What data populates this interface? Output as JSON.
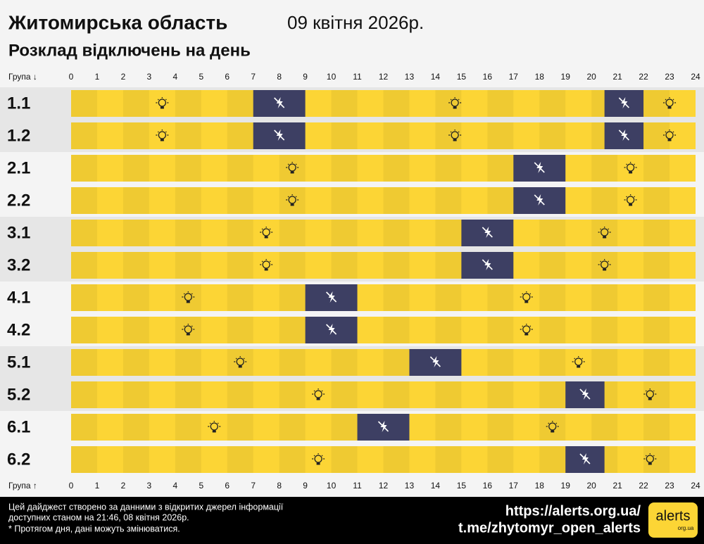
{
  "chart_data": {
    "type": "gantt",
    "title": "Житомирська область",
    "date": "09 квітня 2026р.",
    "subtitle": "Розклад відключень на день",
    "axis_label_top": "Група ↓",
    "axis_label_bottom": "Група ↑",
    "categories": [
      "1.1",
      "1.2",
      "2.1",
      "2.2",
      "3.1",
      "3.2",
      "4.1",
      "4.2",
      "5.1",
      "5.2",
      "6.1",
      "6.2"
    ],
    "outages": [
      [
        [
          7,
          9
        ],
        [
          20.5,
          22
        ]
      ],
      [
        [
          7,
          9
        ],
        [
          20.5,
          22
        ]
      ],
      [
        [
          17,
          19
        ]
      ],
      [
        [
          17,
          19
        ]
      ],
      [
        [
          15,
          17
        ]
      ],
      [
        [
          15,
          17
        ]
      ],
      [
        [
          9,
          11
        ]
      ],
      [
        [
          9,
          11
        ]
      ],
      [
        [
          13,
          15
        ]
      ],
      [
        [
          19,
          20.5
        ]
      ],
      [
        [
          11,
          13
        ]
      ],
      [
        [
          19,
          20.5
        ]
      ]
    ],
    "xlim": [
      0,
      24
    ],
    "xticks": [
      0,
      1,
      2,
      3,
      4,
      5,
      6,
      7,
      8,
      9,
      10,
      11,
      12,
      13,
      14,
      15,
      16,
      17,
      18,
      19,
      20,
      21,
      22,
      23,
      24
    ],
    "on_color": "#fcd535",
    "off_color": "#3d3f63"
  },
  "footer": {
    "note_lines": [
      "Цей дайджест створено за данними з відкритих джерел інформації",
      "доступних станом на 21:46, 08 квітня 2026р."
    ],
    "disclaimer": "* Протягом дня, дані можуть змінюватися.",
    "links": [
      "https://alerts.org.ua/",
      "t.me/zhytomyr_open_alerts"
    ],
    "logo": {
      "text": "alerts",
      "sub": "org.ua"
    }
  }
}
